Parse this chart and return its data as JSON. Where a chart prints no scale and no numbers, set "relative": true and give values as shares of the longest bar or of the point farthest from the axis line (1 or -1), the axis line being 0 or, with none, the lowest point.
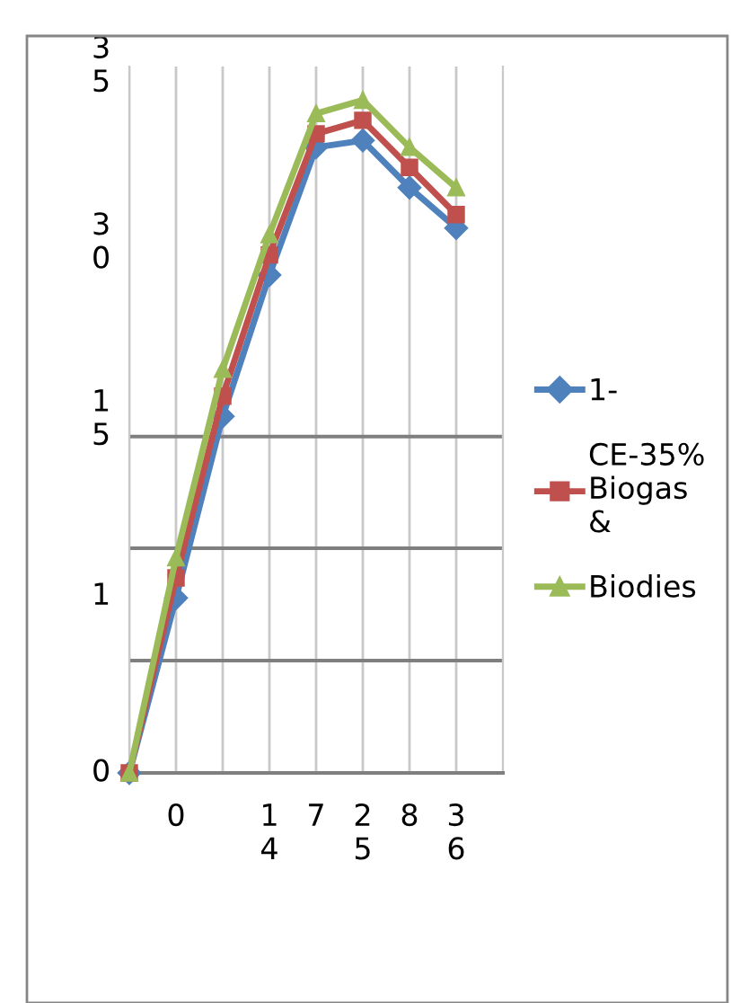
{
  "chart_data": {
    "type": "line",
    "categories": [
      null,
      "0",
      null,
      "1\n4",
      "7",
      "2\n5",
      "8",
      "3\n6"
    ],
    "relative": true,
    "grid": "x",
    "annotations": [
      "3\n5",
      "3\n0",
      "1\n5",
      "1",
      "0"
    ],
    "ref_lines": [
      {
        "axis": "y",
        "value": 0.167,
        "color": "#7f7f7f"
      },
      {
        "axis": "y",
        "value": 0.334,
        "color": "#7f7f7f"
      },
      {
        "axis": "y",
        "value": 0.5,
        "color": "#7f7f7f"
      }
    ],
    "legend": "right",
    "series": [
      {
        "name": "1-",
        "color": "#4f81bd",
        "marker": "diamond",
        "values": [
          0,
          0.26,
          0.53,
          0.74,
          0.93,
          0.94,
          0.87,
          0.81
        ]
      },
      {
        "name": "CE-35%\nBiogas\n&",
        "color": "#c0504d",
        "marker": "square",
        "values": [
          0,
          0.29,
          0.56,
          0.77,
          0.95,
          0.97,
          0.9,
          0.83
        ]
      },
      {
        "name": "Biodies",
        "color": "#9bbb59",
        "marker": "triangle",
        "values": [
          0,
          0.32,
          0.6,
          0.8,
          0.98,
          1,
          0.93,
          0.87
        ]
      }
    ]
  }
}
